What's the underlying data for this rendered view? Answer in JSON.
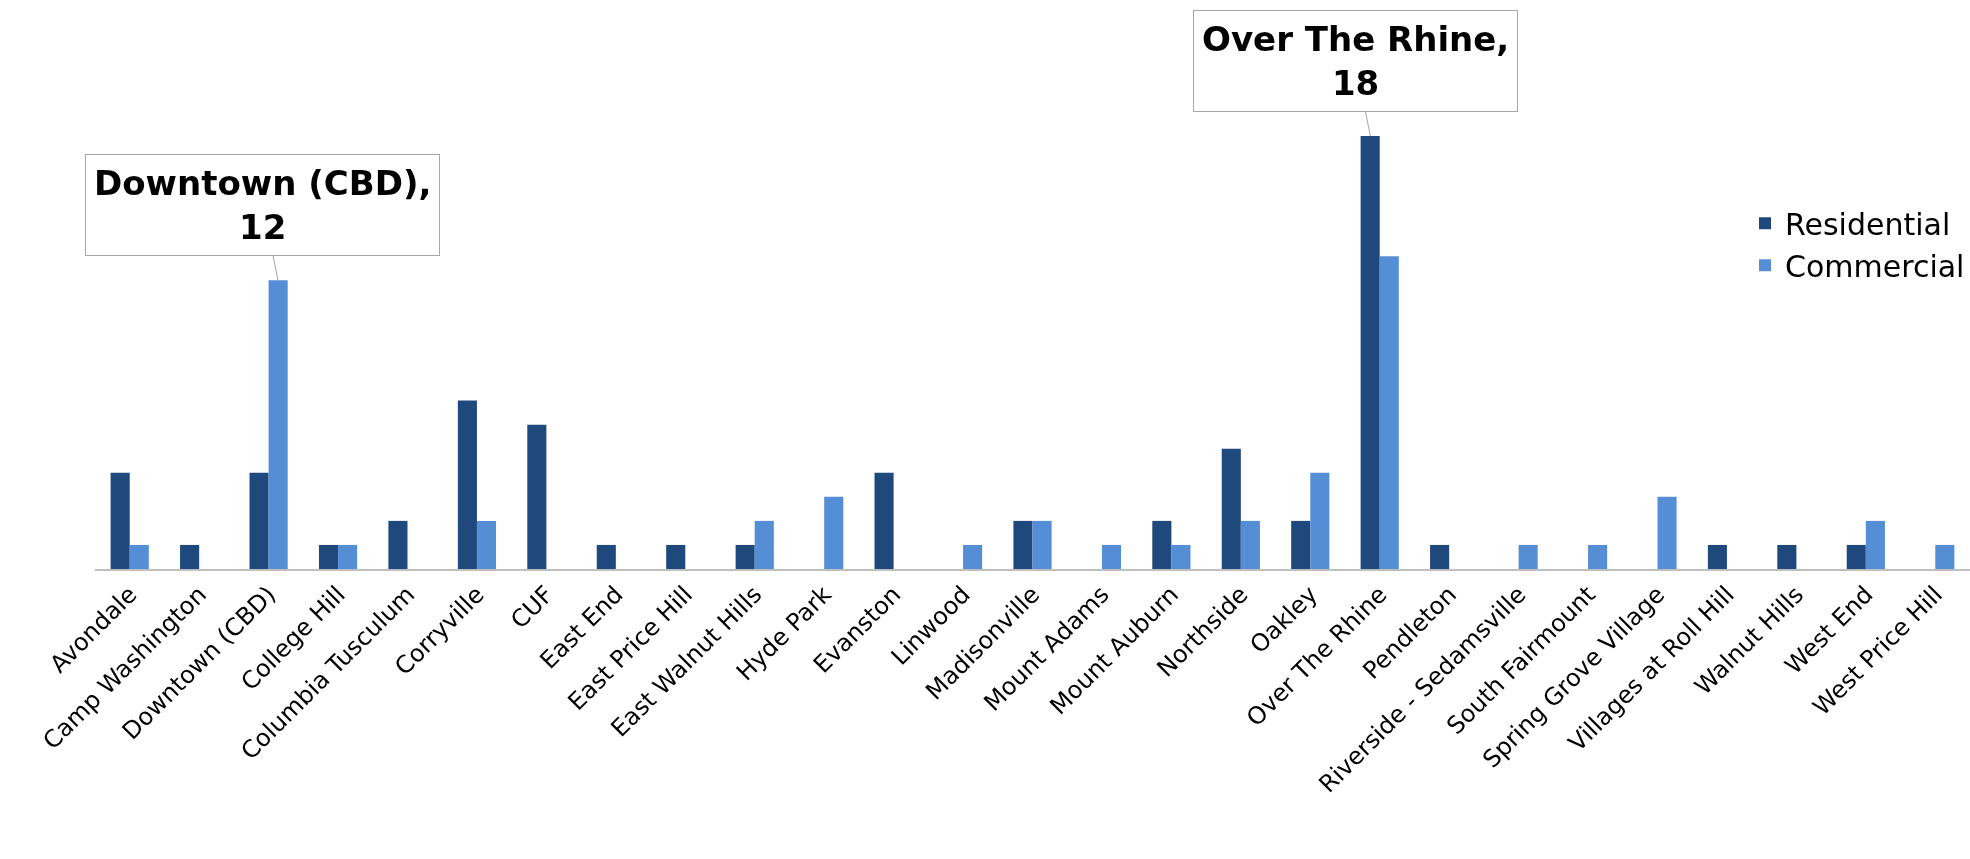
{
  "chart_data": {
    "type": "bar",
    "categories": [
      "Avondale",
      "Camp Washington",
      "Downtown (CBD)",
      "College Hill",
      "Columbia Tusculum",
      "Corryville",
      "CUF",
      "East End",
      "East Price Hill",
      "East Walnut Hills",
      "Hyde Park",
      "Evanston",
      "Linwood",
      "Madisonville",
      "Mount Adams",
      "Mount Auburn",
      "Northside",
      "Oakley",
      "Over The Rhine",
      "Pendleton",
      "Riverside - Sedamsville",
      "South Fairmount",
      "Spring Grove Village",
      "Villages at Roll Hill",
      "Walnut Hills",
      "West End",
      "West Price Hill"
    ],
    "series": [
      {
        "name": "Residential",
        "color": "#1f497d",
        "values": [
          4,
          1,
          4,
          1,
          2,
          7,
          6,
          1,
          1,
          1,
          0,
          4,
          0,
          2,
          0,
          2,
          5,
          2,
          18,
          1,
          0,
          0,
          0,
          1,
          1,
          1,
          0
        ],
        "value_labels": [
          null,
          null,
          null,
          null,
          null,
          null,
          null,
          null,
          null,
          null,
          null,
          null,
          null,
          null,
          null,
          null,
          null,
          null,
          "Over The Rhine, 18",
          null,
          null,
          null,
          null,
          null,
          null,
          null,
          null
        ]
      },
      {
        "name": "Commercial",
        "color": "#558ed5",
        "values": [
          1,
          0,
          12,
          1,
          0,
          2,
          0,
          0,
          0,
          2,
          3,
          0,
          1,
          2,
          1,
          1,
          2,
          4,
          13,
          0,
          1,
          1,
          3,
          0,
          0,
          2,
          1
        ],
        "value_labels": [
          null,
          null,
          "Downtown (CBD), 12",
          null,
          null,
          null,
          null,
          null,
          null,
          null,
          null,
          null,
          null,
          null,
          null,
          null,
          null,
          null,
          null,
          null,
          null,
          null,
          null,
          null,
          null,
          null,
          null
        ]
      }
    ],
    "ylim": [
      0,
      18
    ],
    "tick_labels": "x",
    "legend": "right"
  }
}
